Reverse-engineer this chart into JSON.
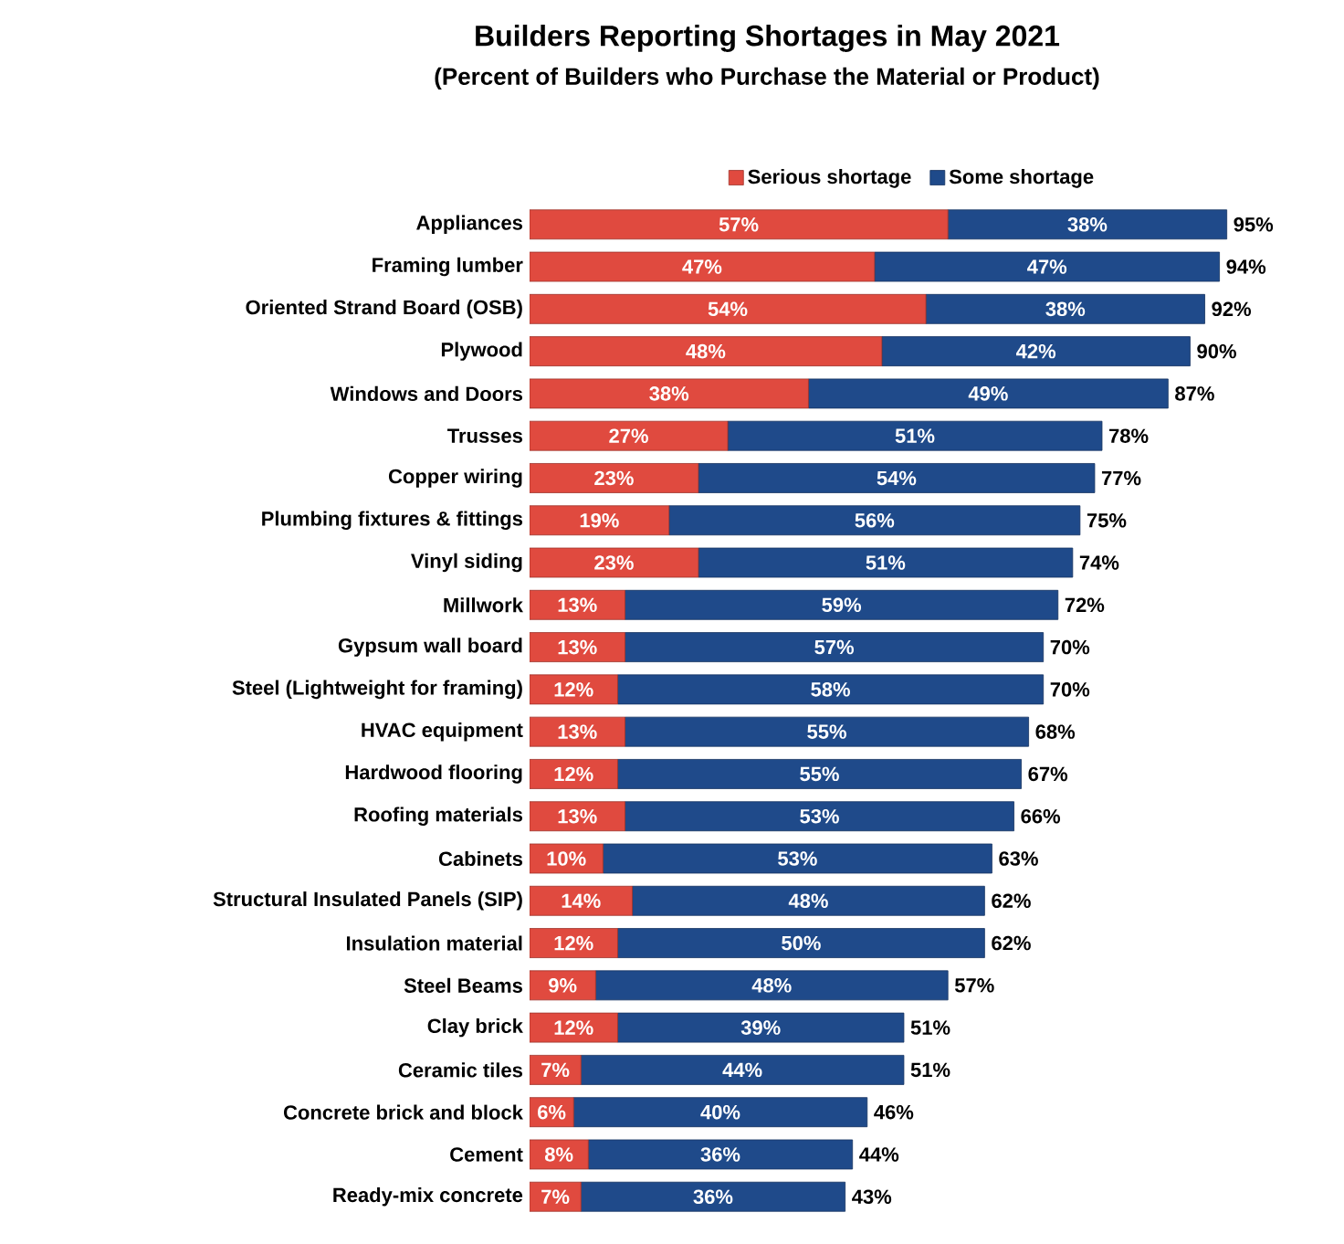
{
  "chart_data": {
    "type": "bar",
    "orientation": "horizontal",
    "stacked": true,
    "title": "Builders Reporting Shortages in May 2021",
    "subtitle": "(Percent of Builders who Purchase the Material or Product)",
    "categories": [
      "Appliances",
      "Framing lumber",
      "Oriented Strand Board (OSB)",
      "Plywood",
      "Windows and Doors",
      "Trusses",
      "Copper wiring",
      "Plumbing fixtures & fittings",
      "Vinyl siding",
      "Millwork",
      "Gypsum wall board",
      "Steel (Lightweight for framing)",
      "HVAC equipment",
      "Hardwood flooring",
      "Roofing materials",
      "Cabinets",
      "Structural Insulated Panels (SIP)",
      "Insulation material",
      "Steel Beams",
      "Clay brick",
      "Ceramic tiles",
      "Concrete brick and block",
      "Cement",
      "Ready-mix concrete"
    ],
    "series": [
      {
        "name": "Serious shortage",
        "color": "#e04a3f",
        "values": [
          57,
          47,
          54,
          48,
          38,
          27,
          23,
          19,
          23,
          13,
          13,
          12,
          13,
          12,
          13,
          10,
          14,
          12,
          9,
          12,
          7,
          6,
          8,
          7
        ],
        "value_labels": [
          "57%",
          "47%",
          "54%",
          "48%",
          "38%",
          "27%",
          "23%",
          "19%",
          "23%",
          "13%",
          "13%",
          "12%",
          "13%",
          "12%",
          "13%",
          "10%",
          "14%",
          "12%",
          "9%",
          "12%",
          "7%",
          "6%",
          "8%",
          "7%"
        ]
      },
      {
        "name": "Some shortage",
        "color": "#1f4a8a",
        "values": [
          38,
          47,
          38,
          42,
          49,
          51,
          54,
          56,
          51,
          59,
          57,
          58,
          55,
          55,
          53,
          53,
          48,
          50,
          48,
          39,
          44,
          40,
          36,
          36
        ],
        "value_labels": [
          "38%",
          "47%",
          "38%",
          "42%",
          "49%",
          "51%",
          "54%",
          "56%",
          "51%",
          "59%",
          "57%",
          "58%",
          "55%",
          "55%",
          "53%",
          "53%",
          "48%",
          "50%",
          "48%",
          "39%",
          "44%",
          "40%",
          "36%",
          "36%"
        ]
      }
    ],
    "totals": [
      "95%",
      "94%",
      "92%",
      "90%",
      "87%",
      "78%",
      "77%",
      "75%",
      "74%",
      "72%",
      "70%",
      "70%",
      "68%",
      "67%",
      "66%",
      "63%",
      "62%",
      "62%",
      "57%",
      "51%",
      "51%",
      "46%",
      "44%",
      "43%"
    ],
    "legend": "top",
    "tick_labels": "y"
  }
}
